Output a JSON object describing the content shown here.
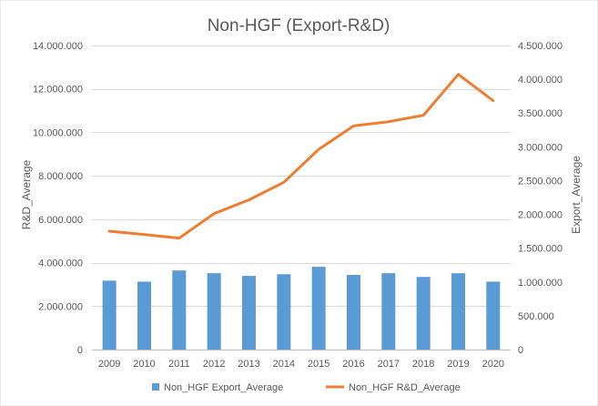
{
  "chart_data": {
    "type": "bar+line",
    "title": "Non-HGF (Export-R&D)",
    "categories": [
      "2009",
      "2010",
      "2011",
      "2012",
      "2013",
      "2014",
      "2015",
      "2016",
      "2017",
      "2018",
      "2019",
      "2020"
    ],
    "series": [
      {
        "name": "Non_HGF Export_Average",
        "type": "bar",
        "axis": "right",
        "color": "#5B9BD5",
        "values": [
          1020000,
          1005000,
          1170000,
          1130000,
          1090000,
          1115000,
          1225000,
          1105000,
          1130000,
          1075000,
          1130000,
          1005000
        ]
      },
      {
        "name": "Non_HGF R&D_Average",
        "type": "line",
        "axis": "left",
        "color": "#ED7D31",
        "values": [
          5450000,
          5300000,
          5130000,
          6260000,
          6890000,
          7700000,
          9220000,
          10300000,
          10490000,
          10790000,
          12670000,
          11460000
        ]
      }
    ],
    "y_left": {
      "label": "R&D_Average",
      "lim": [
        0,
        14000000
      ],
      "ticks": [
        0,
        2000000,
        4000000,
        6000000,
        8000000,
        10000000,
        12000000,
        14000000
      ],
      "tick_labels": [
        "0",
        "2.000.000",
        "4.000.000",
        "6.000.000",
        "8.000.000",
        "10.000.000",
        "12.000.000",
        "14.000.000"
      ]
    },
    "y_right": {
      "label": "Export_Average",
      "lim": [
        0,
        4500000
      ],
      "ticks": [
        0,
        500000,
        1000000,
        1500000,
        2000000,
        2500000,
        3000000,
        3500000,
        4000000,
        4500000
      ],
      "tick_labels": [
        "0",
        "500.000",
        "1.000.000",
        "1.500.000",
        "2.000.000",
        "2.500.000",
        "3.000.000",
        "3.500.000",
        "4.000.000",
        "4.500.000"
      ]
    },
    "grid": true,
    "legend_position": "bottom"
  }
}
